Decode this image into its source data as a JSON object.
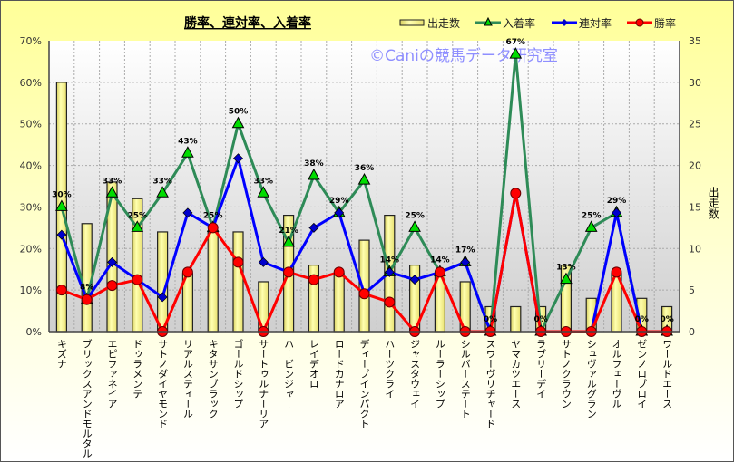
{
  "chart_data": {
    "type": "bar+line",
    "title": "勝率、連対率、入着率",
    "watermark": "©Caniの競馬データ研究室",
    "categories": [
      "キズナ",
      "ブリックスアンドモルタル",
      "エピファネイア",
      "ドゥラメンテ",
      "サトノダイヤモンド",
      "リアルスティール",
      "キタサンブラック",
      "ゴールドシップ",
      "サートゥルナーリア",
      "ハービンジャー",
      "レイデオロ",
      "ロードカナロア",
      "ディープインパクト",
      "ハーツクライ",
      "ジャスタウェイ",
      "ルーラーシップ",
      "シルバーステート",
      "スワーヴリチャード",
      "ヤマカツエース",
      "ラブリーデイ",
      "サトノクラウン",
      "シュヴァルグラン",
      "オルフェーヴル",
      "ゼンノロブロイ",
      "ワールドエース"
    ],
    "y_left": {
      "ylim": [
        0,
        70
      ],
      "ticks": [
        "0%",
        "10%",
        "20%",
        "30%",
        "40%",
        "50%",
        "60%",
        "70%"
      ]
    },
    "y_right": {
      "label": "出走数",
      "ylim": [
        0,
        35
      ],
      "ticks": [
        "0",
        "5",
        "10",
        "15",
        "20",
        "25",
        "30",
        "35"
      ]
    },
    "legend_position": "top-right",
    "grid": true,
    "series": [
      {
        "name": "出走数",
        "kind": "bar",
        "axis": "right",
        "color": "#f5f08a",
        "values": [
          30,
          13,
          18,
          16,
          12,
          7,
          12,
          12,
          6,
          14,
          8,
          7,
          11,
          14,
          8,
          7,
          6,
          3,
          3,
          3,
          8,
          4,
          7,
          4,
          3
        ]
      },
      {
        "name": "入着率",
        "kind": "line",
        "marker": "triangle",
        "axis": "left",
        "color": "#2e8b57",
        "marker_color": "#00dd00",
        "values": [
          30,
          7.7,
          33.3,
          25,
          33.3,
          42.9,
          25,
          50,
          33.3,
          21.4,
          37.5,
          28.6,
          36.4,
          14.3,
          25,
          14.3,
          16.7,
          0,
          66.7,
          0,
          12.5,
          25,
          28.6,
          0,
          0
        ],
        "labels": [
          "30%",
          "8%",
          "33%",
          "25%",
          "33%",
          "43%",
          "25%",
          "50%",
          "33%",
          "21%",
          "38%",
          "29%",
          "36%",
          "14%",
          "25%",
          "14%",
          "17%",
          "0%",
          "67%",
          "0%",
          "13%",
          "25%",
          "29%",
          "0%",
          "0%"
        ]
      },
      {
        "name": "連対率",
        "kind": "line",
        "marker": "diamond",
        "axis": "left",
        "color": "#0000ff",
        "marker_color": "#0000cc",
        "values": [
          23.3,
          7.7,
          16.7,
          12.5,
          8.3,
          28.6,
          25,
          41.7,
          16.7,
          14.3,
          25,
          28.6,
          9.1,
          14.3,
          12.5,
          14.3,
          16.7,
          0,
          33.3,
          0,
          0,
          0,
          28.6,
          0,
          0
        ]
      },
      {
        "name": "勝率",
        "kind": "line",
        "marker": "circle",
        "axis": "left",
        "color": "#ff0000",
        "marker_color": "#ff0000",
        "values": [
          10,
          7.7,
          11.1,
          12.5,
          0,
          14.3,
          25,
          16.7,
          0,
          14.3,
          12.5,
          14.3,
          9.1,
          7.1,
          0,
          14.3,
          0,
          0,
          33.3,
          0,
          0,
          0,
          14.3,
          0,
          0
        ]
      }
    ]
  }
}
